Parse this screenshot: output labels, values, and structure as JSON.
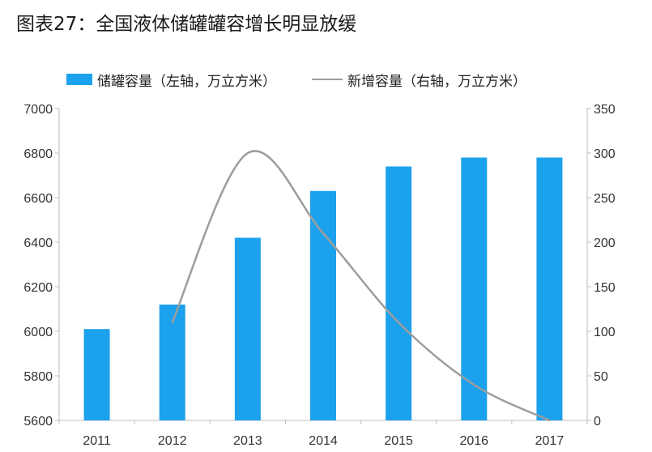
{
  "title": "图表27：全国液体储罐罐容增长明显放缓",
  "chart_data": {
    "type": "bar",
    "title": "图表27：全国液体储罐罐容增长明显放缓",
    "categories": [
      "2011",
      "2012",
      "2013",
      "2014",
      "2015",
      "2016",
      "2017"
    ],
    "series": [
      {
        "name": "储罐容量（左轴，万立方米）",
        "type": "bar",
        "axis": "left",
        "color": "#1ca1ec",
        "values": [
          6010,
          6120,
          6420,
          6630,
          6740,
          6780,
          6780
        ]
      },
      {
        "name": "新增容量（右轴，万立方米）",
        "type": "line",
        "axis": "right",
        "color": "#9d9d9d",
        "values": [
          null,
          110,
          300,
          210,
          110,
          40,
          0
        ]
      }
    ],
    "left_axis": {
      "ylim": [
        5600,
        7000
      ],
      "ticks": [
        "5600",
        "5800",
        "6000",
        "6200",
        "6400",
        "6600",
        "6800",
        "7000"
      ]
    },
    "right_axis": {
      "ylim": [
        0,
        350
      ],
      "ticks": [
        "0",
        "50",
        "100",
        "150",
        "200",
        "250",
        "300",
        "350"
      ]
    },
    "legend": [
      "储罐容量（左轴，万立方米）",
      "新增容量（右轴，万立方米）"
    ],
    "legend_position": "top"
  }
}
